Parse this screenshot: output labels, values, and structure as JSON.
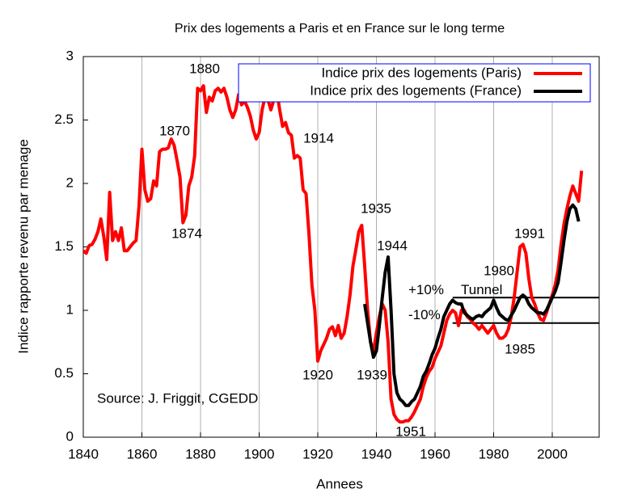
{
  "chart_data": {
    "type": "line",
    "title": "Prix des logements a Paris et en France sur le long terme",
    "x_label": "Annees",
    "y_label": "Indice rapporte revenu par menage",
    "xlim": [
      1840,
      2016
    ],
    "xticks": [
      1840,
      1860,
      1880,
      1900,
      1920,
      1940,
      1960,
      1980,
      2000
    ],
    "ylim": [
      0,
      3
    ],
    "yticks": [
      0,
      0.5,
      1,
      1.5,
      2,
      2.5,
      3
    ],
    "grid": "x",
    "legend_position": "top-right",
    "legend_border_color": "#0000ff",
    "x": [
      1840,
      1841,
      1842,
      1843,
      1844,
      1845,
      1846,
      1847,
      1848,
      1849,
      1850,
      1851,
      1852,
      1853,
      1854,
      1855,
      1856,
      1857,
      1858,
      1859,
      1860,
      1861,
      1862,
      1863,
      1864,
      1865,
      1866,
      1867,
      1868,
      1869,
      1870,
      1871,
      1872,
      1873,
      1874,
      1875,
      1876,
      1877,
      1878,
      1879,
      1880,
      1881,
      1882,
      1883,
      1884,
      1885,
      1886,
      1887,
      1888,
      1889,
      1890,
      1891,
      1892,
      1893,
      1894,
      1895,
      1896,
      1897,
      1898,
      1899,
      1900,
      1901,
      1902,
      1903,
      1904,
      1905,
      1906,
      1907,
      1908,
      1909,
      1910,
      1911,
      1912,
      1913,
      1914,
      1915,
      1916,
      1917,
      1918,
      1919,
      1920,
      1921,
      1922,
      1923,
      1924,
      1925,
      1926,
      1927,
      1928,
      1929,
      1930,
      1931,
      1932,
      1933,
      1934,
      1935,
      1936,
      1937,
      1938,
      1939,
      1940,
      1941,
      1942,
      1943,
      1944,
      1945,
      1946,
      1947,
      1948,
      1949,
      1950,
      1951,
      1952,
      1953,
      1954,
      1955,
      1956,
      1957,
      1958,
      1959,
      1960,
      1961,
      1962,
      1963,
      1964,
      1965,
      1966,
      1967,
      1968,
      1969,
      1970,
      1971,
      1972,
      1973,
      1974,
      1975,
      1976,
      1977,
      1978,
      1979,
      1980,
      1981,
      1982,
      1983,
      1984,
      1985,
      1986,
      1987,
      1988,
      1989,
      1990,
      1991,
      1992,
      1993,
      1994,
      1995,
      1996,
      1997,
      1998,
      1999,
      2000,
      2001,
      2002,
      2003,
      2004,
      2005,
      2006,
      2007,
      2008,
      2009,
      2010
    ],
    "series": [
      {
        "name": "Indice prix des logements (Paris)",
        "color": "#ff0000",
        "values": [
          1.47,
          1.45,
          1.51,
          1.52,
          1.56,
          1.62,
          1.72,
          1.58,
          1.4,
          1.93,
          1.55,
          1.62,
          1.55,
          1.65,
          1.47,
          1.47,
          1.5,
          1.53,
          1.55,
          1.82,
          2.27,
          1.95,
          1.86,
          1.88,
          2.02,
          1.98,
          2.25,
          2.27,
          2.27,
          2.28,
          2.35,
          2.3,
          2.18,
          2.05,
          1.69,
          1.75,
          1.98,
          2.05,
          2.22,
          2.75,
          2.73,
          2.77,
          2.56,
          2.68,
          2.65,
          2.73,
          2.75,
          2.72,
          2.75,
          2.68,
          2.58,
          2.52,
          2.58,
          2.7,
          2.62,
          2.65,
          2.6,
          2.53,
          2.42,
          2.35,
          2.4,
          2.58,
          2.68,
          2.66,
          2.58,
          2.66,
          2.73,
          2.58,
          2.45,
          2.48,
          2.4,
          2.38,
          2.2,
          2.22,
          2.2,
          1.95,
          1.92,
          1.6,
          1.2,
          1.0,
          0.6,
          0.68,
          0.73,
          0.78,
          0.85,
          0.87,
          0.8,
          0.88,
          0.78,
          0.82,
          0.95,
          1.12,
          1.35,
          1.48,
          1.62,
          1.67,
          1.35,
          1.0,
          0.75,
          0.68,
          0.82,
          0.95,
          1.05,
          1.0,
          0.75,
          0.3,
          0.18,
          0.14,
          0.12,
          0.12,
          0.13,
          0.13,
          0.16,
          0.2,
          0.25,
          0.3,
          0.4,
          0.47,
          0.52,
          0.55,
          0.62,
          0.67,
          0.72,
          0.82,
          0.92,
          0.97,
          1.0,
          0.98,
          0.88,
          1.0,
          1.0,
          0.95,
          0.93,
          0.9,
          0.88,
          0.85,
          0.88,
          0.85,
          0.82,
          0.85,
          0.88,
          0.82,
          0.78,
          0.78,
          0.8,
          0.85,
          0.95,
          1.1,
          1.3,
          1.5,
          1.52,
          1.45,
          1.25,
          1.1,
          1.05,
          0.98,
          0.93,
          0.92,
          0.98,
          1.05,
          1.12,
          1.2,
          1.32,
          1.52,
          1.68,
          1.8,
          1.9,
          1.98,
          1.92,
          1.86,
          2.1
        ]
      },
      {
        "name": "Indice prix des logements (France)",
        "color": "#000000",
        "values": [
          null,
          null,
          null,
          null,
          null,
          null,
          null,
          null,
          null,
          null,
          null,
          null,
          null,
          null,
          null,
          null,
          null,
          null,
          null,
          null,
          null,
          null,
          null,
          null,
          null,
          null,
          null,
          null,
          null,
          null,
          null,
          null,
          null,
          null,
          null,
          null,
          null,
          null,
          null,
          null,
          null,
          null,
          null,
          null,
          null,
          null,
          null,
          null,
          null,
          null,
          null,
          null,
          null,
          null,
          null,
          null,
          null,
          null,
          null,
          null,
          null,
          null,
          null,
          null,
          null,
          null,
          null,
          null,
          null,
          null,
          null,
          null,
          null,
          null,
          null,
          null,
          null,
          null,
          null,
          null,
          null,
          null,
          null,
          null,
          null,
          null,
          null,
          null,
          null,
          null,
          null,
          null,
          null,
          null,
          null,
          null,
          1.05,
          0.9,
          0.75,
          0.63,
          0.68,
          0.88,
          1.1,
          1.3,
          1.42,
          1.0,
          0.5,
          0.35,
          0.3,
          0.28,
          0.25,
          0.25,
          0.28,
          0.3,
          0.35,
          0.4,
          0.48,
          0.52,
          0.58,
          0.65,
          0.7,
          0.78,
          0.85,
          0.95,
          1.0,
          1.05,
          1.08,
          1.06,
          1.05,
          1.05,
          0.98,
          0.96,
          0.94,
          0.93,
          0.95,
          0.96,
          0.95,
          0.98,
          1.0,
          1.02,
          1.08,
          1.02,
          0.97,
          0.95,
          0.93,
          0.92,
          0.96,
          1.0,
          1.05,
          1.1,
          1.12,
          1.1,
          1.05,
          1.02,
          1.0,
          0.98,
          0.98,
          0.97,
          1.0,
          1.05,
          1.1,
          1.15,
          1.22,
          1.38,
          1.55,
          1.7,
          1.8,
          1.83,
          1.8,
          1.7,
          null
        ]
      }
    ],
    "reference_lines": [
      {
        "value": 1.1,
        "from": 1966,
        "label": "+10%"
      },
      {
        "value": 0.9,
        "from": 1966,
        "label": "-10%"
      }
    ],
    "tunnel_label": "Tunnel",
    "annotations": [
      "1880",
      "1870",
      "1874",
      "1914",
      "1935",
      "1944",
      "1920",
      "1939",
      "1951",
      "1991",
      "1980",
      "1985"
    ],
    "source": "Source: J. Friggit, CGEDD"
  }
}
